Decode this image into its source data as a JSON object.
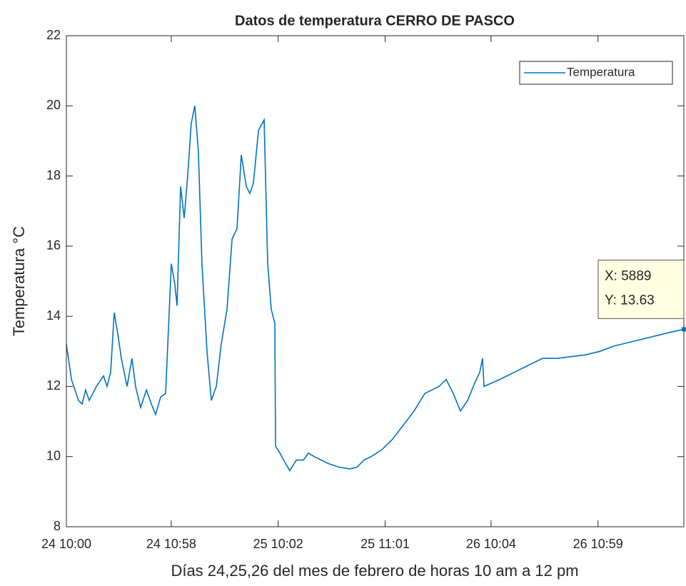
{
  "chart_data": {
    "type": "line",
    "title": "Datos de temperatura CERRO DE PASCO",
    "xlabel": "Días 24,25,26 del mes de febrero de horas 10 am a 12 pm",
    "ylabel": "Temperatura °C",
    "x": [
      0,
      48,
      116,
      150,
      184,
      218,
      286,
      354,
      388,
      422,
      456,
      490,
      524,
      579,
      626,
      660,
      708,
      763,
      810,
      851,
      899,
      946,
      1001,
      1035,
      1055,
      1089,
      1123,
      1157,
      1191,
      1225,
      1259,
      1293,
      1341,
      1382,
      1430,
      1477,
      1532,
      1580,
      1627,
      1668,
      1716,
      1750,
      1784,
      1832,
      1886,
      1920,
      1954,
      1988,
      1995,
      2036,
      2091,
      2131,
      2193,
      2261,
      2308,
      2363,
      2431,
      2499,
      2601,
      2703,
      2771,
      2839,
      2907,
      3010,
      3112,
      3214,
      3316,
      3418,
      3486,
      3554,
      3622,
      3690,
      3758,
      3827,
      3895,
      3942,
      3969,
      3983,
      4133,
      4269,
      4405,
      4541,
      4677,
      4813,
      4949,
      5086,
      5222,
      5358,
      5494,
      5630,
      5766,
      5889
    ],
    "series": [
      {
        "name": "Temperatura",
        "color": "#0072bd",
        "values": [
          13.2,
          12.2,
          11.6,
          11.5,
          11.9,
          11.6,
          12.0,
          12.3,
          12.0,
          12.4,
          14.1,
          13.5,
          12.8,
          12.0,
          12.8,
          12.0,
          11.4,
          11.9,
          11.5,
          11.2,
          11.7,
          11.8,
          15.5,
          14.9,
          14.3,
          17.7,
          16.8,
          18.0,
          19.5,
          20.0,
          18.7,
          15.5,
          13.0,
          11.6,
          12.0,
          13.2,
          14.2,
          16.2,
          16.5,
          18.6,
          17.7,
          17.5,
          17.8,
          19.3,
          19.6,
          15.5,
          14.2,
          13.8,
          10.3,
          10.1,
          9.8,
          9.6,
          9.9,
          9.9,
          10.1,
          10.0,
          9.9,
          9.8,
          9.7,
          9.65,
          9.7,
          9.9,
          10.0,
          10.2,
          10.5,
          10.9,
          11.3,
          11.8,
          11.9,
          12.0,
          12.2,
          11.8,
          11.3,
          11.6,
          12.1,
          12.4,
          12.8,
          12.0,
          12.2,
          12.4,
          12.6,
          12.8,
          12.8,
          12.85,
          12.9,
          13.0,
          13.15,
          13.25,
          13.35,
          13.45,
          13.55,
          13.63
        ]
      }
    ],
    "xlim": [
      0,
      5889
    ],
    "xticks": [
      {
        "value": 0,
        "label": "24 10:00"
      },
      {
        "value": 1000,
        "label": "24 10:58"
      },
      {
        "value": 2020,
        "label": "25 10:02"
      },
      {
        "value": 3040,
        "label": "25 11:01"
      },
      {
        "value": 4050,
        "label": "26 10:04"
      },
      {
        "value": 5070,
        "label": "26 10:59"
      }
    ],
    "ylim": [
      8,
      22
    ],
    "yticks": [
      8,
      10,
      12,
      14,
      16,
      18,
      20,
      22
    ],
    "legend": "northeast",
    "datatip": {
      "x": 5889,
      "y": 13.63,
      "x_label": "X: 5889",
      "y_label": "Y: 13.63"
    }
  }
}
